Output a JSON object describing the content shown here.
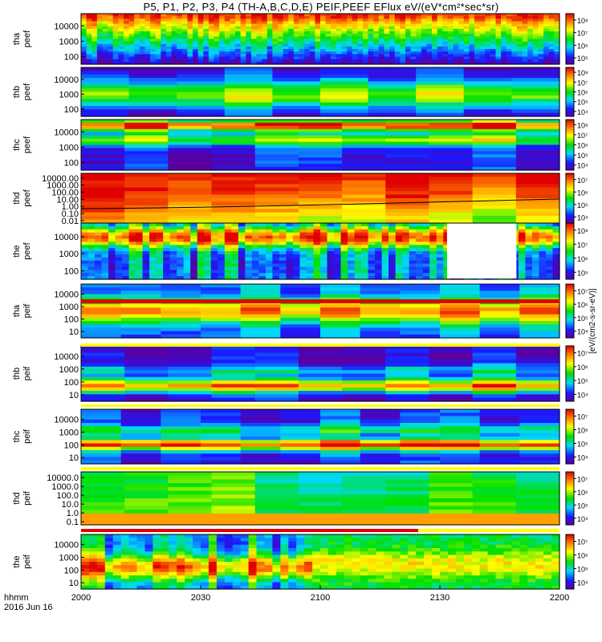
{
  "title": "P5, P1, P2, P3, P4 (TH-A,B,C,D,E) PEIF,PEEF EFlux eV/(eV*cm²*sec*sr)",
  "time_axis": {
    "ticks": [
      "2000",
      "2030",
      "2100",
      "2130",
      "2200"
    ],
    "label_line1": "hhmm",
    "label_line2": "2016 Jun 16"
  },
  "colorbar_label": "[eV/(cm2-s-sr-eV)]",
  "colors": {
    "strip_red": "#e00000",
    "strip_yellow": "#ffff00",
    "background": "#ffffff"
  },
  "chart_data": [
    {
      "type": "heatmap",
      "name": "tha peef",
      "ylabel": [
        "tha",
        "peef"
      ],
      "yscale": "log",
      "yticks": [
        "100",
        "1000",
        "10000"
      ],
      "cbar_ticks": [
        "10⁵",
        "10⁶",
        "10⁷",
        "10⁸"
      ]
    },
    {
      "type": "heatmap",
      "name": "thb peef",
      "ylabel": [
        "thb",
        "peef"
      ],
      "yscale": "log",
      "yticks": [
        "100",
        "1000",
        "10000"
      ],
      "cbar_ticks": [
        "10⁴",
        "10⁵",
        "10⁶",
        "10⁷",
        "10⁸"
      ]
    },
    {
      "type": "heatmap",
      "name": "thc peef",
      "ylabel": [
        "thc",
        "peef"
      ],
      "yscale": "log",
      "yticks": [
        "100",
        "1000",
        "10000"
      ],
      "cbar_ticks": [
        "10⁴",
        "10⁵",
        "10⁶",
        "10⁷",
        "10⁸"
      ]
    },
    {
      "type": "heatmap",
      "name": "thd peef",
      "ylabel": [
        "thd",
        "peef"
      ],
      "yscale": "log",
      "yticks": [
        "0.01",
        "0.10",
        "1.00",
        "10.00",
        "100.00",
        "1000.00",
        "10000.00"
      ],
      "cbar_ticks": [
        "10⁴",
        "10⁵",
        "10⁶",
        "10⁷"
      ]
    },
    {
      "type": "heatmap",
      "name": "the peef",
      "ylabel": [
        "the",
        "peef"
      ],
      "yscale": "log",
      "yticks": [
        "100",
        "1000",
        "10000"
      ],
      "cbar_ticks": [
        "10⁵",
        "10⁶",
        "10⁷",
        "10⁸"
      ]
    },
    {
      "type": "heatmap",
      "name": "tha peif",
      "ylabel": [
        "tha",
        "peif"
      ],
      "yscale": "log",
      "yticks": [
        "10",
        "100",
        "1000",
        "10000"
      ],
      "cbar_ticks": [
        "10⁴",
        "10⁵",
        "10⁶",
        "10⁷"
      ]
    },
    {
      "type": "heatmap",
      "name": "thb peif",
      "ylabel": [
        "thb",
        "peif"
      ],
      "yscale": "log",
      "yticks": [
        "10",
        "100",
        "1000",
        "10000"
      ],
      "cbar_ticks": [
        "10⁴",
        "10⁵",
        "10⁶",
        "10⁷"
      ]
    },
    {
      "type": "heatmap",
      "name": "thc peif",
      "ylabel": [
        "thc",
        "peif"
      ],
      "yscale": "log",
      "yticks": [
        "10",
        "100",
        "1000",
        "10000"
      ],
      "cbar_ticks": [
        "10⁴",
        "10⁵",
        "10⁶",
        "10⁷"
      ]
    },
    {
      "type": "heatmap",
      "name": "thd peif",
      "ylabel": [
        "thd",
        "peif"
      ],
      "yscale": "log",
      "yticks": [
        "0.1",
        "1.0",
        "10.0",
        "100.0",
        "1000.0",
        "10000.0"
      ],
      "cbar_ticks": [
        "10⁴",
        "10⁵",
        "10⁶",
        "10⁷"
      ]
    },
    {
      "type": "heatmap",
      "name": "the peif",
      "ylabel": [
        "the",
        "peif"
      ],
      "yscale": "log",
      "yticks": [
        "10",
        "100",
        "1000",
        "10000"
      ],
      "cbar_ticks": [
        "10⁴",
        "10⁵",
        "10⁶",
        "10⁷"
      ]
    }
  ]
}
